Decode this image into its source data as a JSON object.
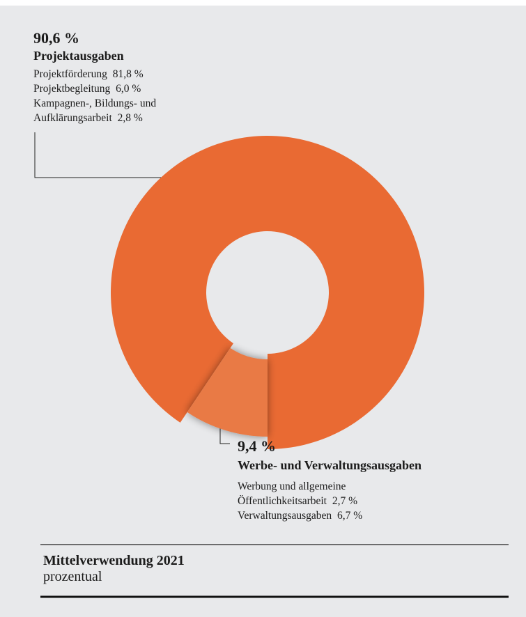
{
  "chart_data": {
    "type": "donut",
    "title": "Mittelverwendung 2021",
    "subtitle": "prozentual",
    "categories": [
      "Projektausgaben",
      "Werbe- und Verwaltungsausgaben"
    ],
    "values": [
      90.6,
      9.4
    ],
    "value_labels": [
      "90,6 %",
      "9,4 %"
    ],
    "colors": [
      "#e96a33",
      "#e97a45"
    ],
    "details": [
      [
        {
          "name": "Projektförderung",
          "value": 81.8,
          "label": "81,8 %"
        },
        {
          "name": "Projektbegleitung",
          "value": 6.0,
          "label": "6,0 %"
        },
        {
          "name": "Kampagnen-, Bildungs- und Aufklärungsarbeit",
          "value": 2.8,
          "label": "2,8 %"
        }
      ],
      [
        {
          "name": "Werbung und allgemeine Öffentlichkeitsarbeit",
          "value": 2.7,
          "label": "2,7 %"
        },
        {
          "name": "Verwaltungsausgaben",
          "value": 6.7,
          "label": "6,7 %"
        }
      ]
    ]
  }
}
